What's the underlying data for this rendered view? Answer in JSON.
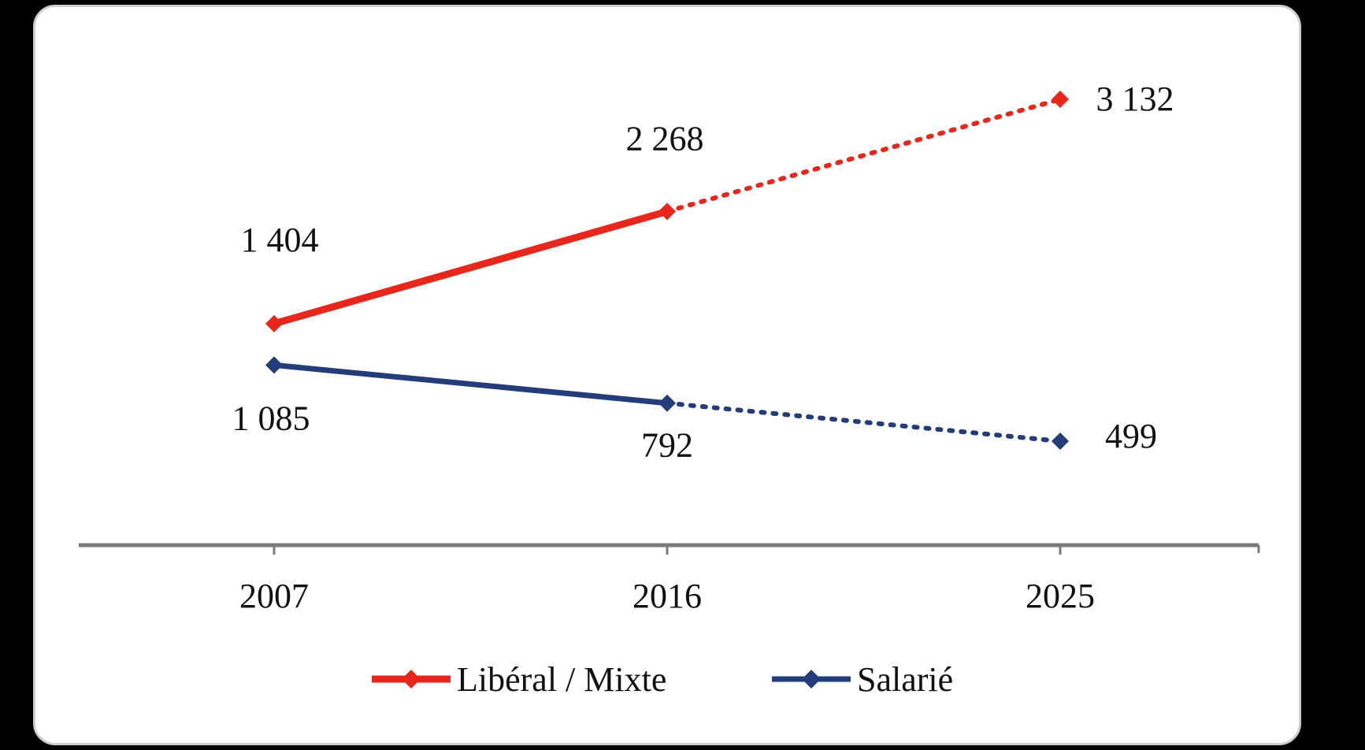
{
  "chart_data": {
    "type": "line",
    "categories": [
      "2007",
      "2016",
      "2025"
    ],
    "series": [
      {
        "name": "Libéral / Mixte",
        "color": "#e8271c",
        "values": [
          1404,
          2268,
          3132
        ],
        "labels": [
          "1 404",
          "2 268",
          "3 132"
        ],
        "projected_from_index": 1
      },
      {
        "name": "Salarié",
        "color": "#253c7a",
        "values": [
          1085,
          792,
          499
        ],
        "labels": [
          "1 085",
          "792",
          "499"
        ],
        "projected_from_index": 1
      }
    ],
    "legend_position": "bottom",
    "grid": false,
    "ylim": [
      0,
      3300
    ]
  }
}
